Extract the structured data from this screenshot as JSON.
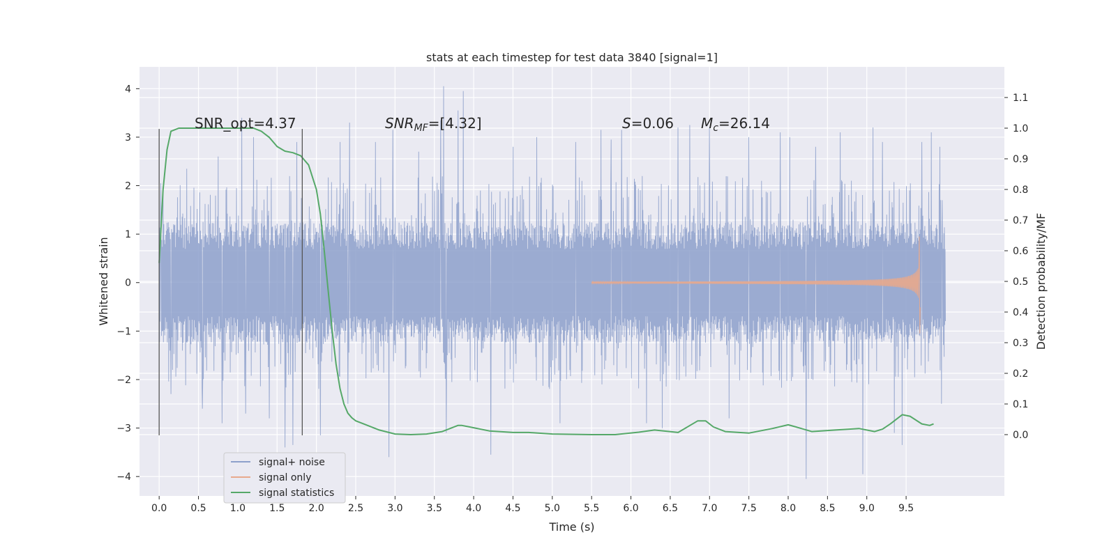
{
  "chart_data": {
    "type": "line",
    "title": "stats at each timestep for test data 3840 [signal=1]",
    "xlabel": "Time (s)",
    "ylabel": "Whitened strain",
    "ylabel_right": "Detection probability/MF",
    "xlim": [
      -0.25,
      10.75
    ],
    "ylim": [
      -4.4,
      4.45
    ],
    "ylim_right": [
      -0.2,
      1.2
    ],
    "x_ticks": [
      "0.0",
      "0.5",
      "1.0",
      "1.5",
      "2.0",
      "2.5",
      "3.0",
      "3.5",
      "4.0",
      "4.5",
      "5.0",
      "5.5",
      "6.0",
      "6.5",
      "7.0",
      "7.5",
      "8.0",
      "8.5",
      "9.0",
      "9.5"
    ],
    "x_tick_values": [
      0,
      0.5,
      1,
      1.5,
      2,
      2.5,
      3,
      3.5,
      4,
      4.5,
      5,
      5.5,
      6,
      6.5,
      7,
      7.5,
      8,
      8.5,
      9,
      9.5
    ],
    "y_ticks": [
      "4",
      "3",
      "2",
      "1",
      "0",
      "−1",
      "−2",
      "−3",
      "−4"
    ],
    "y_tick_values": [
      4,
      3,
      2,
      1,
      0,
      -1,
      -2,
      -3,
      -4
    ],
    "y_right_ticks": [
      "1.1",
      "1.0",
      "0.9",
      "0.8",
      "0.7",
      "0.6",
      "0.5",
      "0.4",
      "0.3",
      "0.2",
      "0.1",
      "0.0"
    ],
    "y_right_tick_values": [
      1.1,
      1.0,
      0.9,
      0.8,
      0.7,
      0.6,
      0.5,
      0.4,
      0.3,
      0.2,
      0.1,
      0.0
    ],
    "grid": true,
    "legend_position": "lower-left",
    "annotations": {
      "snr_opt": "SNR_opt=4.37",
      "snr_mf_name": "SNR",
      "snr_mf_sub": "MF",
      "snr_mf_value": "=[4.32]",
      "s_name": "S",
      "s_value": "=0.06",
      "mc_name": "M",
      "mc_sub": "c",
      "mc_value": "=26.14"
    },
    "vertical_markers_x": [
      0.0,
      1.82
    ],
    "series": [
      {
        "name": "signal+ noise",
        "color": "#8da0cb",
        "axis": "left",
        "x_range": [
          0.0,
          10.0
        ],
        "dense_band": [
          -1.25,
          1.25
        ],
        "typical_envelope": [
          -2.2,
          2.2
        ],
        "spikes": [
          {
            "x": 0.02,
            "y": 2.05
          },
          {
            "x": 0.03,
            "y": -1.1
          },
          {
            "x": 0.15,
            "y": -2.3
          },
          {
            "x": 0.35,
            "y": 2.35
          },
          {
            "x": 0.55,
            "y": -2.6
          },
          {
            "x": 0.75,
            "y": 2.6
          },
          {
            "x": 0.8,
            "y": -2.9
          },
          {
            "x": 1.05,
            "y": 3.4
          },
          {
            "x": 1.1,
            "y": -2.7
          },
          {
            "x": 1.2,
            "y": 3.0
          },
          {
            "x": 1.4,
            "y": -2.8
          },
          {
            "x": 1.6,
            "y": -3.4
          },
          {
            "x": 1.7,
            "y": -3.35
          },
          {
            "x": 1.75,
            "y": 2.9
          },
          {
            "x": 2.05,
            "y": -3.15
          },
          {
            "x": 2.3,
            "y": 2.9
          },
          {
            "x": 2.4,
            "y": -2.5
          },
          {
            "x": 2.42,
            "y": 3.3
          },
          {
            "x": 2.75,
            "y": 2.9
          },
          {
            "x": 2.92,
            "y": -3.6
          },
          {
            "x": 2.97,
            "y": 3.15
          },
          {
            "x": 3.3,
            "y": 2.7
          },
          {
            "x": 3.58,
            "y": 3.35
          },
          {
            "x": 3.62,
            "y": 4.05
          },
          {
            "x": 3.65,
            "y": -3.1
          },
          {
            "x": 3.8,
            "y": 3.55
          },
          {
            "x": 3.87,
            "y": 3.95
          },
          {
            "x": 4.22,
            "y": -3.55
          },
          {
            "x": 4.5,
            "y": 2.8
          },
          {
            "x": 4.8,
            "y": 3.0
          },
          {
            "x": 5.1,
            "y": -2.9
          },
          {
            "x": 5.3,
            "y": 2.9
          },
          {
            "x": 5.62,
            "y": 3.15
          },
          {
            "x": 5.75,
            "y": 2.95
          },
          {
            "x": 5.88,
            "y": 3.15
          },
          {
            "x": 6.2,
            "y": -2.9
          },
          {
            "x": 6.4,
            "y": -3.0
          },
          {
            "x": 6.6,
            "y": 3.2
          },
          {
            "x": 6.75,
            "y": 3.25
          },
          {
            "x": 7.0,
            "y": 3.2
          },
          {
            "x": 7.25,
            "y": -2.8
          },
          {
            "x": 7.5,
            "y": 3.0
          },
          {
            "x": 7.9,
            "y": 3.1
          },
          {
            "x": 8.02,
            "y": 3.0
          },
          {
            "x": 8.23,
            "y": -4.05
          },
          {
            "x": 8.35,
            "y": 2.8
          },
          {
            "x": 8.66,
            "y": 3.1
          },
          {
            "x": 8.95,
            "y": -3.95
          },
          {
            "x": 9.08,
            "y": 3.2
          },
          {
            "x": 9.2,
            "y": 2.9
          },
          {
            "x": 9.35,
            "y": -3.1
          },
          {
            "x": 9.45,
            "y": -3.35
          },
          {
            "x": 9.7,
            "y": 2.9
          },
          {
            "x": 9.82,
            "y": 3.1
          },
          {
            "x": 9.93,
            "y": 2.8
          },
          {
            "x": 9.95,
            "y": -2.5
          },
          {
            "x": 9.96,
            "y": 1.7
          }
        ]
      },
      {
        "name": "signal only",
        "color": "#e8a98c",
        "axis": "left",
        "x_range": [
          5.5,
          9.68
        ],
        "peak_amplitude": 0.95,
        "trough": -1.05
      },
      {
        "name": "signal statistics",
        "color": "#55a868",
        "axis": "right",
        "x": [
          0.0,
          0.05,
          0.1,
          0.15,
          0.25,
          0.4,
          0.6,
          0.8,
          1.0,
          1.2,
          1.3,
          1.4,
          1.5,
          1.6,
          1.7,
          1.8,
          1.9,
          2.0,
          2.05,
          2.1,
          2.15,
          2.2,
          2.25,
          2.3,
          2.35,
          2.4,
          2.45,
          2.5,
          2.6,
          2.8,
          3.0,
          3.2,
          3.4,
          3.6,
          3.8,
          3.85,
          3.95,
          4.2,
          4.5,
          4.7,
          5.0,
          5.5,
          5.8,
          6.1,
          6.3,
          6.6,
          6.85,
          6.95,
          7.05,
          7.2,
          7.5,
          7.8,
          8.0,
          8.1,
          8.3,
          8.6,
          8.9,
          9.1,
          9.2,
          9.3,
          9.45,
          9.55,
          9.7,
          9.8,
          9.85
        ],
        "y": [
          0.56,
          0.8,
          0.93,
          0.99,
          1.0,
          1.0,
          1.0,
          1.0,
          1.0,
          1.0,
          0.99,
          0.97,
          0.94,
          0.925,
          0.92,
          0.91,
          0.88,
          0.8,
          0.72,
          0.6,
          0.47,
          0.34,
          0.23,
          0.15,
          0.1,
          0.07,
          0.055,
          0.045,
          0.035,
          0.015,
          0.002,
          0.0,
          0.002,
          0.01,
          0.03,
          0.03,
          0.025,
          0.012,
          0.007,
          0.007,
          0.002,
          0.0,
          0.0,
          0.008,
          0.015,
          0.007,
          0.045,
          0.045,
          0.025,
          0.01,
          0.005,
          0.02,
          0.032,
          0.025,
          0.01,
          0.015,
          0.02,
          0.01,
          0.018,
          0.035,
          0.065,
          0.06,
          0.035,
          0.03,
          0.035
        ]
      }
    ]
  }
}
